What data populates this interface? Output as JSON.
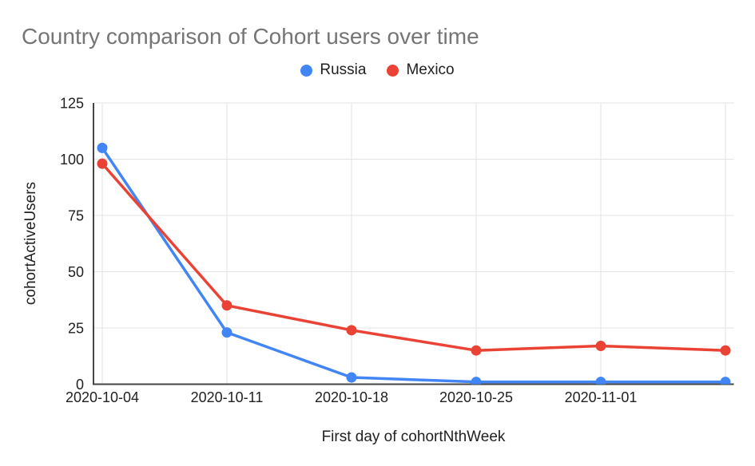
{
  "chart_data": {
    "type": "line",
    "title": "Country comparison of Cohort users over time",
    "xlabel": "First day of cohortNthWeek",
    "ylabel": "cohortActiveUsers",
    "categories": [
      "2020-10-04",
      "2020-10-11",
      "2020-10-18",
      "2020-10-25",
      "2020-11-01",
      ""
    ],
    "series": [
      {
        "name": "Russia",
        "color": "#4285F4",
        "values": [
          105,
          23,
          3,
          1,
          1,
          1
        ]
      },
      {
        "name": "Mexico",
        "color": "#EA4335",
        "values": [
          98,
          35,
          24,
          15,
          17,
          15
        ]
      }
    ],
    "ylim": [
      0,
      125
    ],
    "yticks": [
      0,
      25,
      50,
      75,
      100,
      125
    ],
    "grid": true,
    "legend_position": "top-center",
    "colors": {
      "title_text": "#757575",
      "axis_text": "#212121",
      "gridline": "#e3e3e3",
      "axis_line": "#444444",
      "background": "#ffffff"
    }
  }
}
